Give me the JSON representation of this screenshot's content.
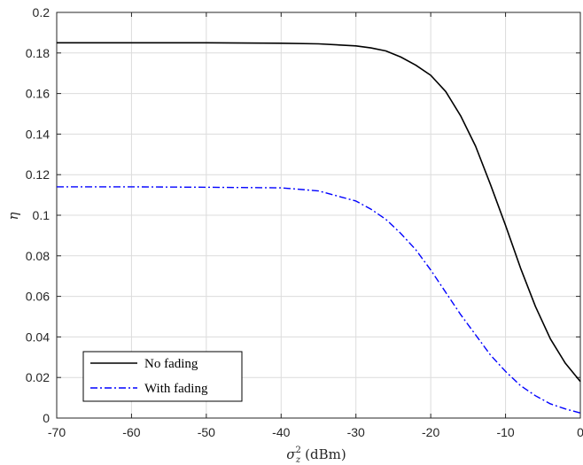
{
  "chart_data": {
    "type": "line",
    "title": "",
    "xlabel": "σ",
    "xlabel_sub": "z",
    "xlabel_sup": "2",
    "xlabel_unit": "(dBm)",
    "ylabel": "η",
    "xlim": [
      -70,
      0
    ],
    "ylim": [
      0,
      0.2
    ],
    "xticks": [
      -70,
      -60,
      -50,
      -40,
      -30,
      -20,
      -10,
      0
    ],
    "yticks": [
      0,
      0.02,
      0.04,
      0.06,
      0.08,
      0.1,
      0.12,
      0.14,
      0.16,
      0.18,
      0.2
    ],
    "xtick_labels": [
      "-70",
      "-60",
      "-50",
      "-40",
      "-30",
      "-20",
      "-10",
      "0"
    ],
    "ytick_labels": [
      "0",
      "0.02",
      "0.04",
      "0.06",
      "0.08",
      "0.1",
      "0.12",
      "0.14",
      "0.16",
      "0.18",
      "0.2"
    ],
    "grid": true,
    "legend_position": "bottom-left",
    "series": [
      {
        "name": "No fading",
        "color": "#000000",
        "style": "solid",
        "x": [
          -70,
          -60,
          -50,
          -40,
          -35,
          -30,
          -28,
          -26,
          -24,
          -22,
          -20,
          -18,
          -16,
          -14,
          -12,
          -10,
          -8,
          -6,
          -4,
          -2,
          0
        ],
        "y": [
          0.185,
          0.185,
          0.185,
          0.1848,
          0.1845,
          0.1835,
          0.1825,
          0.181,
          0.178,
          0.174,
          0.169,
          0.161,
          0.149,
          0.134,
          0.115,
          0.095,
          0.074,
          0.055,
          0.039,
          0.027,
          0.018
        ]
      },
      {
        "name": "With fading",
        "color": "#0000ff",
        "style": "dashdot",
        "x": [
          -70,
          -60,
          -50,
          -40,
          -35,
          -30,
          -28,
          -26,
          -24,
          -22,
          -20,
          -18,
          -16,
          -14,
          -12,
          -10,
          -8,
          -6,
          -4,
          -2,
          0
        ],
        "y": [
          0.114,
          0.114,
          0.1138,
          0.1135,
          0.112,
          0.107,
          0.103,
          0.098,
          0.091,
          0.083,
          0.073,
          0.062,
          0.051,
          0.041,
          0.031,
          0.023,
          0.016,
          0.011,
          0.007,
          0.0045,
          0.0025
        ]
      }
    ]
  }
}
